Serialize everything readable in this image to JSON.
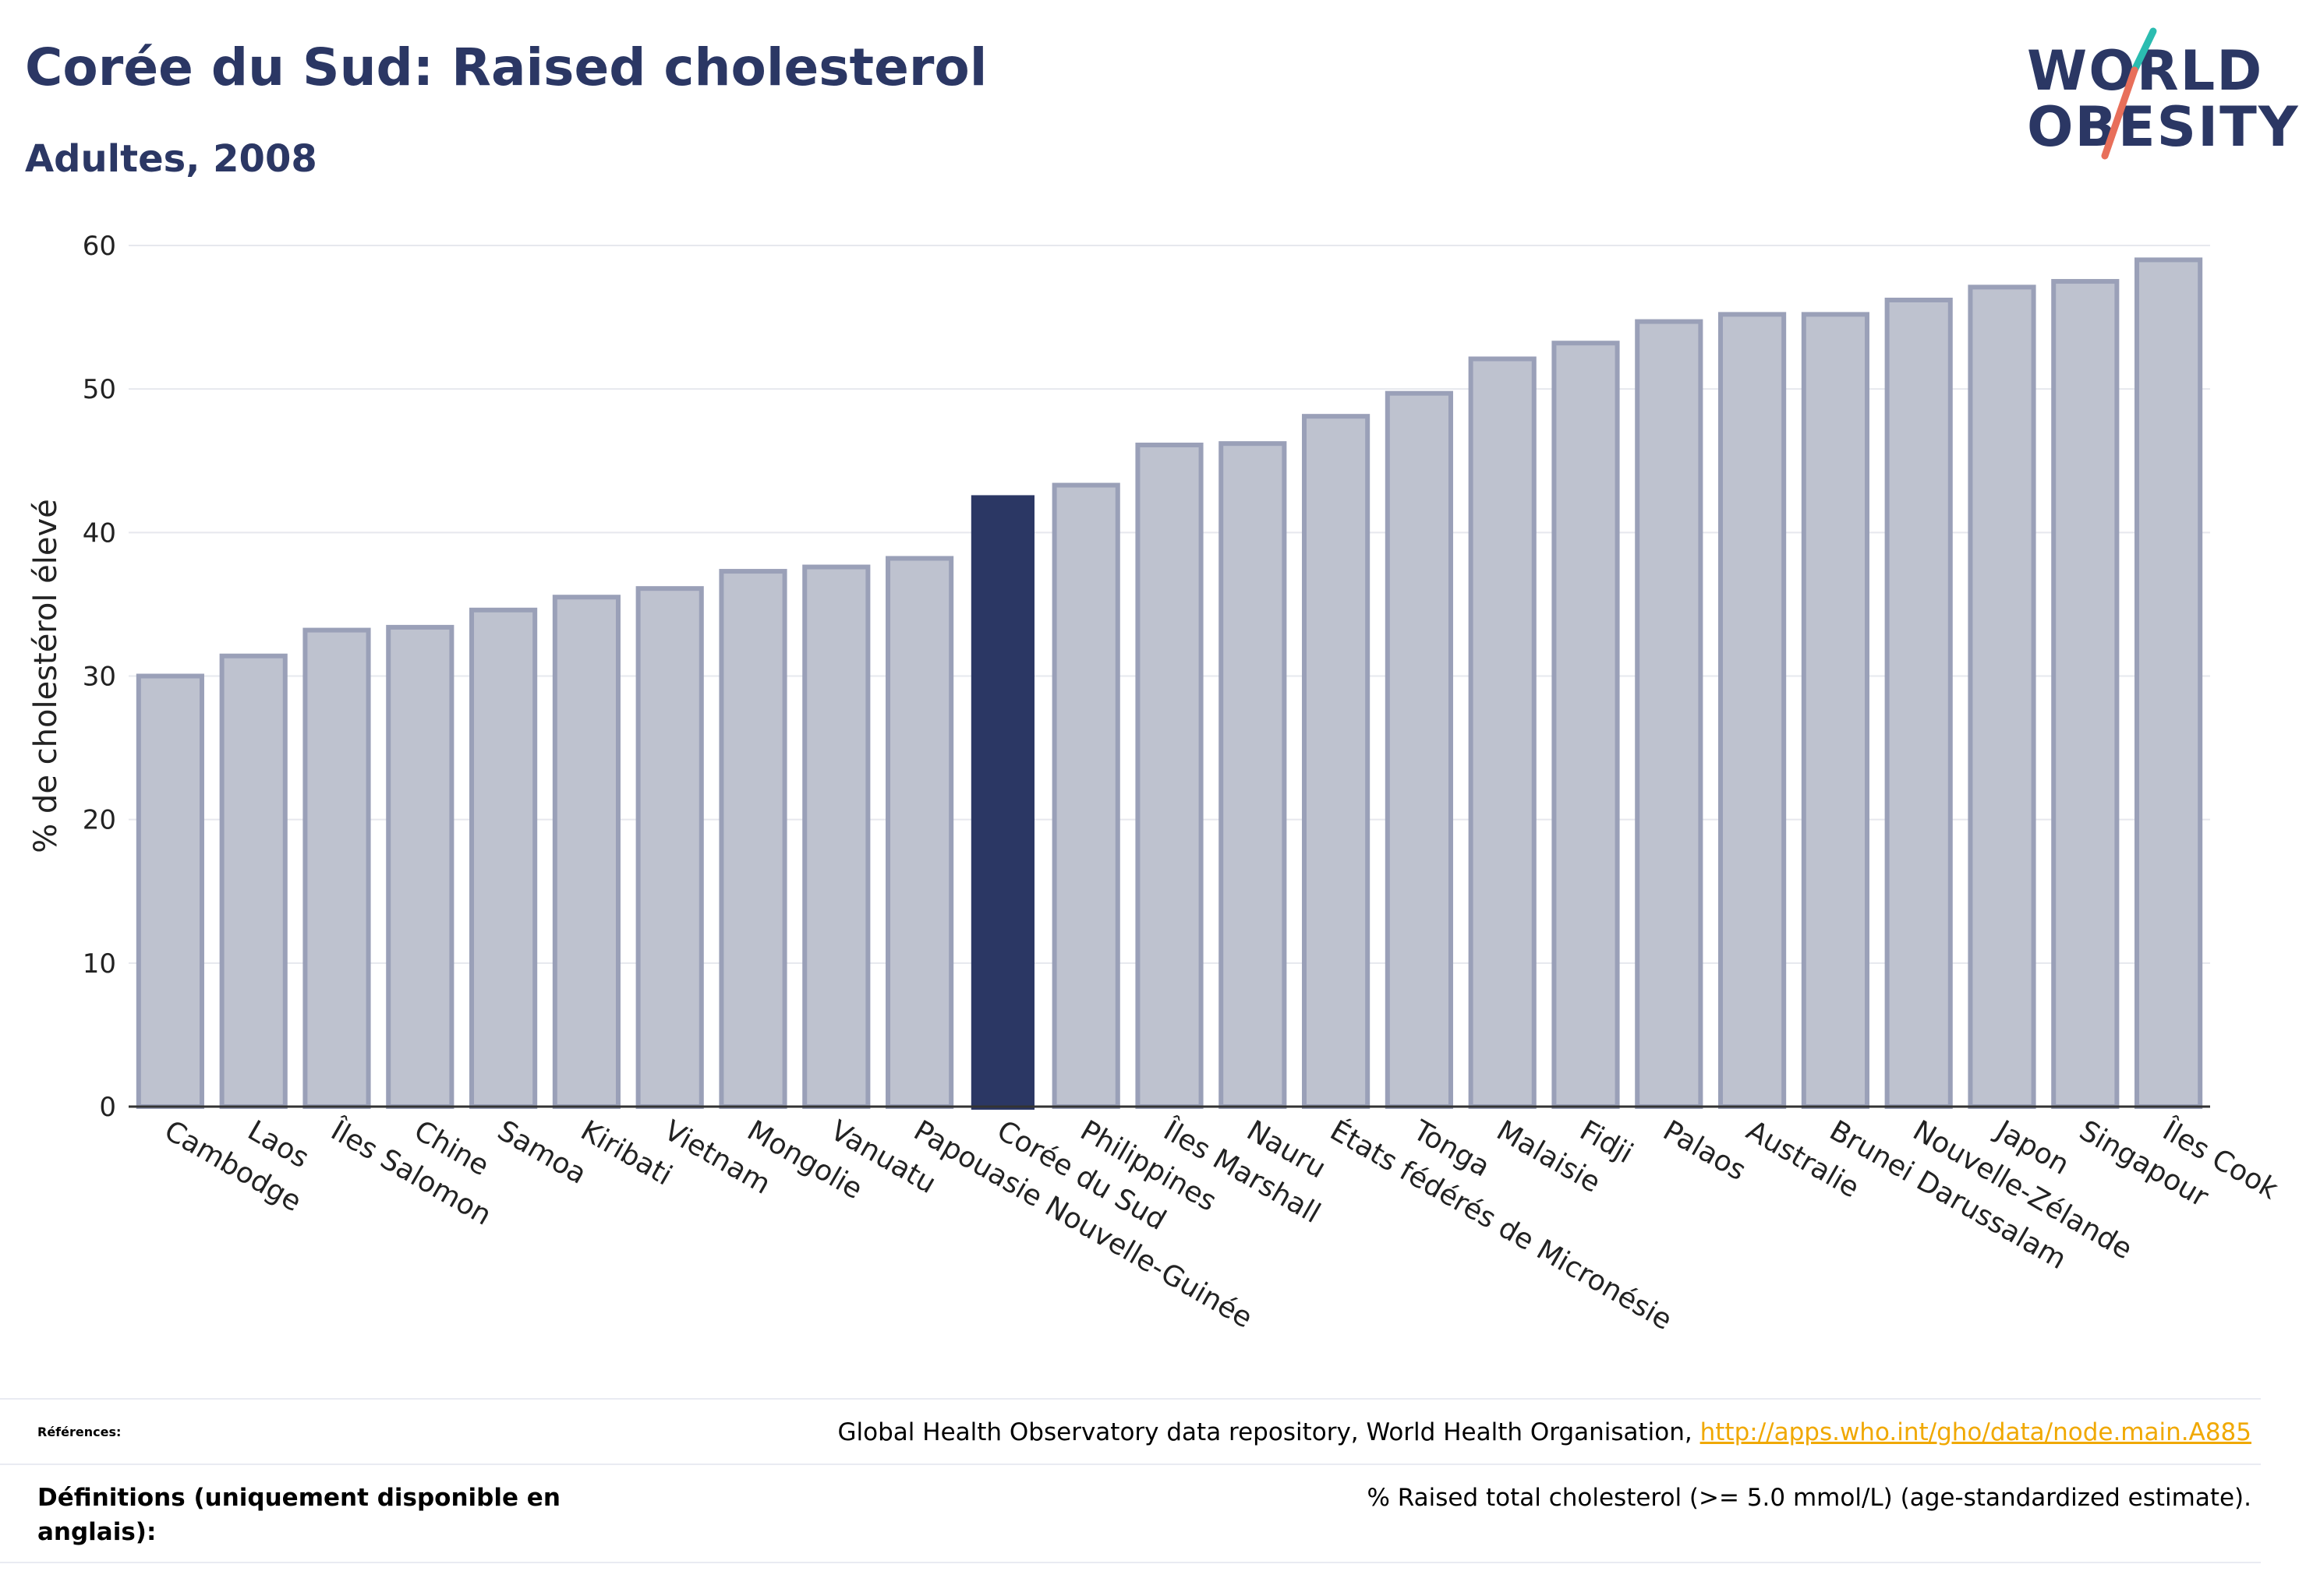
{
  "header": {
    "title": "Corée du Sud: Raised cholesterol",
    "subtitle": "Adultes, 2008"
  },
  "logo": {
    "line1": "WORLD",
    "line2": "OBESITY"
  },
  "colors": {
    "accent": "#2b3764",
    "bar": "#bec2cf",
    "bar_border": "#9aa0b8",
    "link": "#f0a800",
    "logo_teal": "#2bbcb0",
    "logo_coral": "#e86f5a"
  },
  "chart_data": {
    "type": "bar",
    "title": "Corée du Sud: Raised cholesterol",
    "subtitle": "Adultes, 2008",
    "ylabel": "% de cholestérol élevé",
    "xlabel": "",
    "ylim": [
      0,
      60
    ],
    "yticks": [
      0,
      10,
      20,
      30,
      40,
      50,
      60
    ],
    "grid": true,
    "highlight": "Corée du Sud",
    "categories": [
      "Cambodge",
      "Laos",
      "Îles Salomon",
      "Chine",
      "Samoa",
      "Kiribati",
      "Vietnam",
      "Mongolie",
      "Vanuatu",
      "Papouasie Nouvelle-Guinée",
      "Corée du Sud",
      "Philippines",
      "Îles Marshall",
      "Nauru",
      "États fédérés de Micronésie",
      "Tonga",
      "Malaisie",
      "Fidji",
      "Palaos",
      "Australie",
      "Brunei Darussalam",
      "Nouvelle-Zélande",
      "Japon",
      "Singapour",
      "Îles Cook"
    ],
    "values": [
      30.0,
      31.4,
      33.2,
      33.4,
      34.6,
      35.5,
      36.1,
      37.3,
      37.6,
      38.2,
      42.6,
      43.3,
      46.1,
      46.2,
      48.1,
      49.7,
      52.1,
      53.2,
      54.7,
      55.2,
      55.2,
      56.2,
      57.1,
      57.5,
      59.0
    ]
  },
  "footer": {
    "references_label": "Références:",
    "references_text": "Global Health Observatory data repository, World Health Organisation, ",
    "references_link": "http://apps.who.int/gho/data/node.main.A885",
    "definitions_label": "Définitions (uniquement disponible en anglais):",
    "definitions_text": "% Raised total cholesterol (>= 5.0 mmol/L) (age-standardized estimate)."
  }
}
